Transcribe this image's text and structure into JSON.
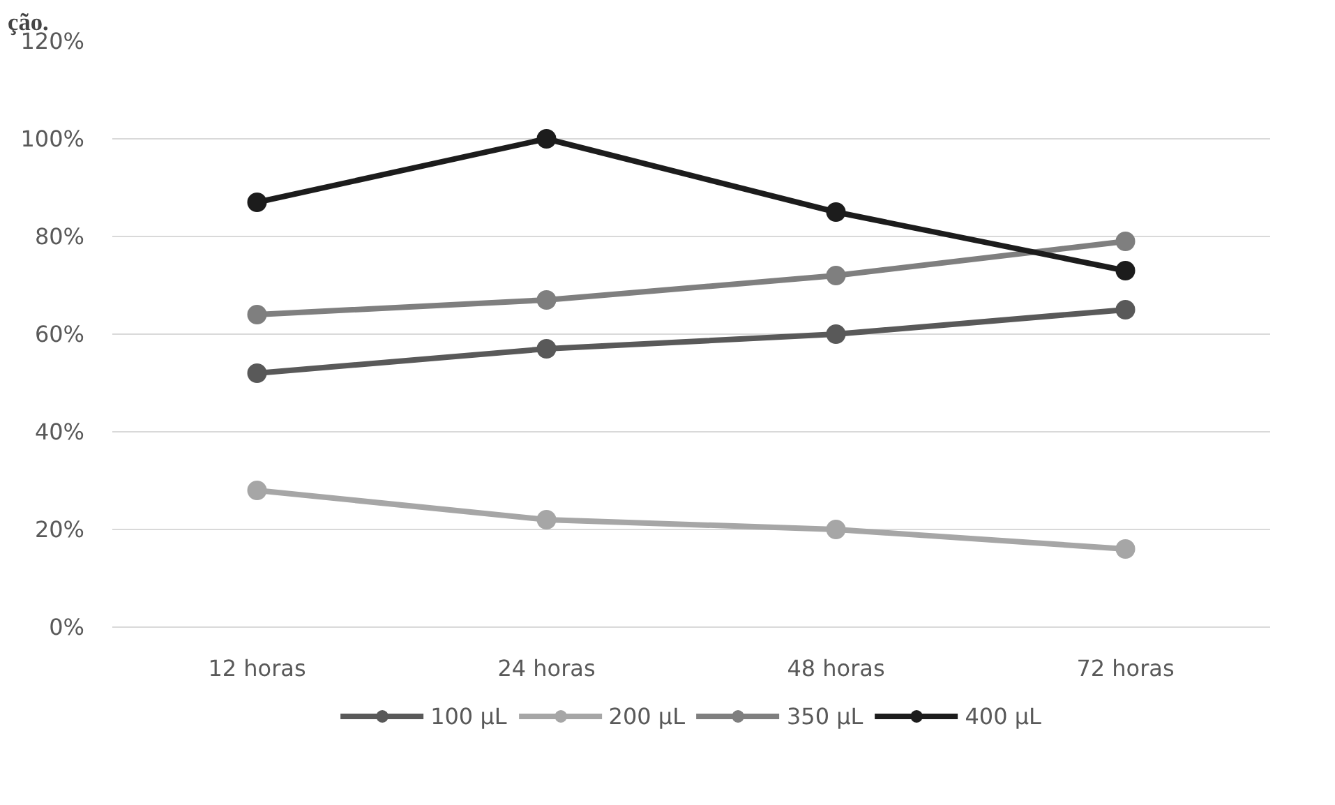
{
  "chart_data": {
    "type": "line",
    "categories": [
      "12 horas",
      "24 horas",
      "48 horas",
      "72 horas"
    ],
    "series": [
      {
        "name": "100 µL",
        "color": "#595959",
        "values": [
          52,
          57,
          60,
          65
        ]
      },
      {
        "name": "200 µL",
        "color": "#a6a6a6",
        "values": [
          28,
          22,
          20,
          16
        ]
      },
      {
        "name": "350 µL",
        "color": "#7f7f7f",
        "values": [
          64,
          67,
          72,
          79
        ]
      },
      {
        "name": "400 µL",
        "color": "#1c1c1c",
        "values": [
          87,
          100,
          85,
          73
        ]
      }
    ],
    "ylim": [
      0,
      120
    ],
    "yticks": [
      {
        "value": 0,
        "label": "0%"
      },
      {
        "value": 20,
        "label": "20%"
      },
      {
        "value": 40,
        "label": "40%"
      },
      {
        "value": 60,
        "label": "60%"
      },
      {
        "value": 80,
        "label": "80%"
      },
      {
        "value": 100,
        "label": "100%"
      },
      {
        "value": 120,
        "label": "120%"
      }
    ],
    "grid": "y",
    "legend": "bottom",
    "marker": "circle",
    "line_style": "solid",
    "annotations": [
      "ção."
    ]
  }
}
